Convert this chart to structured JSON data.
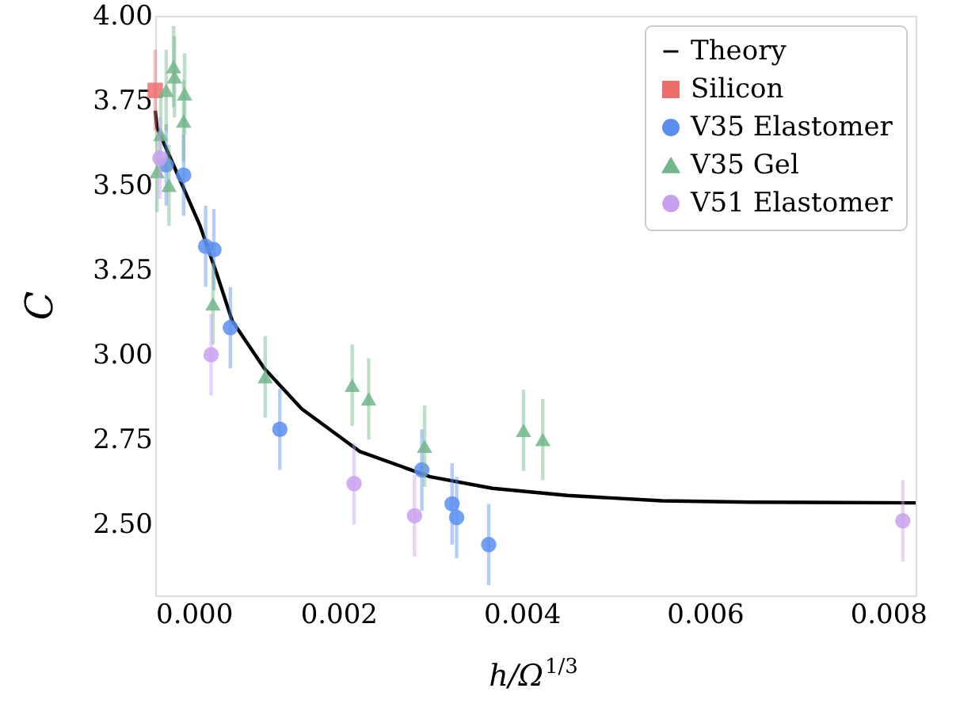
{
  "chart_data": {
    "type": "scatter",
    "xlabel": "h/Ω$^{1/3}$",
    "ylabel": "C",
    "xlim": [
      0,
      0.0083
    ],
    "ylim": [
      2.29,
      4.0
    ],
    "xticks": [
      {
        "value": 0,
        "label": "0.000"
      },
      {
        "value": 0.002,
        "label": "0.002"
      },
      {
        "value": 0.004,
        "label": "0.004"
      },
      {
        "value": 0.006,
        "label": "0.006"
      },
      {
        "value": 0.008,
        "label": "0.008"
      }
    ],
    "yticks": [
      {
        "value": 2.5,
        "label": "2.50"
      },
      {
        "value": 2.75,
        "label": "2.75"
      },
      {
        "value": 3.0,
        "label": "3.00"
      },
      {
        "value": 3.25,
        "label": "3.25"
      },
      {
        "value": 3.5,
        "label": "3.50"
      },
      {
        "value": 3.75,
        "label": "3.75"
      },
      {
        "value": 4.0,
        "label": "4.00"
      }
    ],
    "grid": false,
    "legend": "top right",
    "series": [
      {
        "name": "Theory",
        "type": "line",
        "color": "#000000",
        "marker": "none",
        "line_style": "solid",
        "x": [
          0,
          2e-05,
          0.00015,
          0.00049,
          0.00067,
          0.00084,
          0.00119,
          0.0016,
          0.00223,
          0.003,
          0.00368,
          0.0045,
          0.00553,
          0.0065,
          0.0083
        ],
        "values": [
          3.72,
          3.67,
          3.59,
          3.38,
          3.24,
          3.1,
          2.96,
          2.84,
          2.715,
          2.64,
          2.606,
          2.585,
          2.569,
          2.565,
          2.563
        ]
      },
      {
        "name": "Silicon",
        "type": "scatter",
        "color": "#ee6e6e",
        "marker": "square",
        "x": [
          0
        ],
        "values": [
          3.78
        ],
        "errors": [
          0.12
        ]
      },
      {
        "name": "V35 Elastomer",
        "type": "scatter",
        "color": "#5a8ff0",
        "marker": "circle",
        "x": [
          0.00012,
          0.00031,
          0.00055,
          0.00064,
          0.00082,
          0.00136,
          0.00291,
          0.00324,
          0.00329,
          0.00364
        ],
        "values": [
          3.56,
          3.53,
          3.32,
          3.31,
          3.08,
          2.78,
          2.66,
          2.56,
          2.52,
          2.44
        ],
        "errors": [
          0.12,
          0.12,
          0.12,
          0.12,
          0.12,
          0.12,
          0.12,
          0.12,
          0.12,
          0.12
        ]
      },
      {
        "name": "V35 Gel",
        "type": "scatter",
        "color": "#72b68a",
        "marker": "triangle",
        "x": [
          2e-05,
          6e-05,
          0.00012,
          0.00015,
          0.0002,
          0.00021,
          0.00031,
          0.00032,
          0.00063,
          0.0012,
          0.00215,
          0.00233,
          0.00294,
          0.00402,
          0.00423
        ],
        "values": [
          3.54,
          3.65,
          3.78,
          3.5,
          3.85,
          3.82,
          3.69,
          3.77,
          3.15,
          2.935,
          2.91,
          2.87,
          2.73,
          2.777,
          2.75
        ],
        "errors": [
          0.12,
          0.12,
          0.12,
          0.12,
          0.12,
          0.12,
          0.12,
          0.12,
          0.12,
          0.12,
          0.12,
          0.12,
          0.12,
          0.12,
          0.12
        ]
      },
      {
        "name": "V51 Elastomer",
        "type": "scatter",
        "color": "#c9a0ef",
        "marker": "circle",
        "x": [
          5e-05,
          0.00061,
          0.00217,
          0.00283,
          0.00816
        ],
        "values": [
          3.58,
          3.0,
          2.62,
          2.525,
          2.51
        ],
        "errors": [
          0.12,
          0.12,
          0.12,
          0.12,
          0.12
        ]
      }
    ]
  }
}
